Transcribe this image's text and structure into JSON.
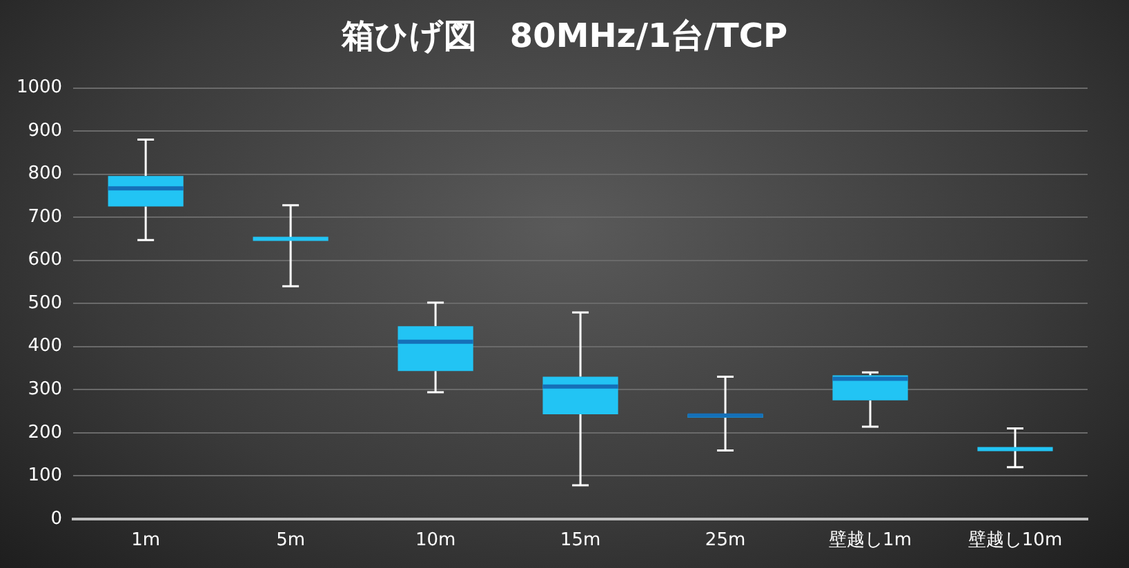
{
  "chart_data": {
    "type": "box",
    "title": "箱ひげ図　80MHz/1台/TCP",
    "categories": [
      "1m",
      "5m",
      "10m",
      "15m",
      "25m",
      "壁越し1m",
      "壁越し10m"
    ],
    "color": "#22c4f4",
    "boxes": [
      {
        "low": 647,
        "q1": 725,
        "median": 767,
        "q3": 796,
        "high": 880
      },
      {
        "low": 540,
        "q1": 650,
        "median": 650,
        "q3": 650,
        "high": 728
      },
      {
        "low": 294,
        "q1": 343,
        "median": 411,
        "q3": 447,
        "high": 502
      },
      {
        "low": 78,
        "q1": 243,
        "median": 307,
        "q3": 330,
        "high": 479
      },
      {
        "low": 159,
        "q1": 235,
        "median": 240,
        "q3": 243,
        "high": 330
      },
      {
        "low": 214,
        "q1": 275,
        "median": 325,
        "q3": 333,
        "high": 340
      },
      {
        "low": 120,
        "q1": 162,
        "median": 162,
        "q3": 162,
        "high": 210
      }
    ],
    "ylim": [
      0,
      1000
    ],
    "yticks": [
      0,
      100,
      200,
      300,
      400,
      500,
      600,
      700,
      800,
      900,
      1000
    ],
    "grid": "y"
  }
}
